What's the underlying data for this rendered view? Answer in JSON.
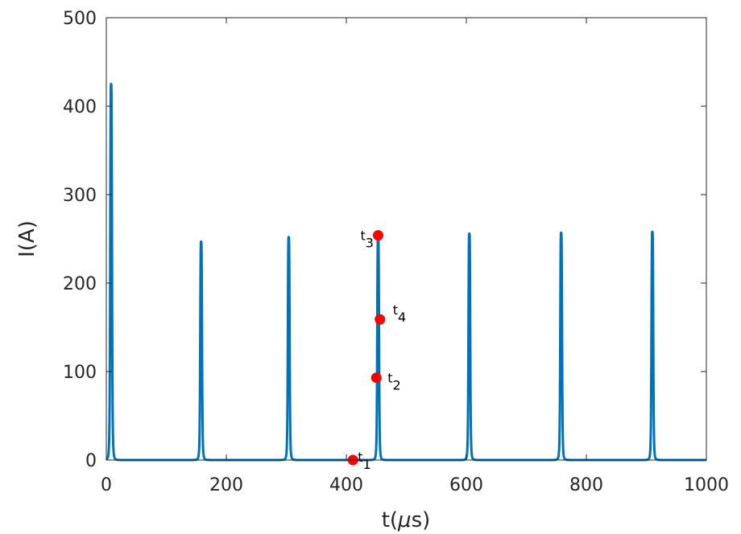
{
  "chart_data": {
    "type": "line",
    "title": "",
    "xlabel_main": "t(",
    "xlabel_greek": "μ",
    "xlabel_tail": "s)",
    "ylabel": "I(A)",
    "xlim": [
      0,
      1000
    ],
    "ylim": [
      0,
      500
    ],
    "x_ticks": [
      0,
      200,
      400,
      600,
      800,
      1000
    ],
    "y_ticks": [
      0,
      100,
      200,
      300,
      400,
      500
    ],
    "x_tick_labels": [
      "0",
      "200",
      "400",
      "600",
      "800",
      "1000"
    ],
    "y_tick_labels": [
      "0",
      "100",
      "200",
      "300",
      "400",
      "500"
    ],
    "grid": false,
    "series": [
      {
        "color": "#0072BD",
        "pulses": [
          {
            "t": 8,
            "peak": 425
          },
          {
            "t": 158,
            "peak": 247
          },
          {
            "t": 304,
            "peak": 252
          },
          {
            "t": 453,
            "peak": 254
          },
          {
            "t": 605,
            "peak": 256
          },
          {
            "t": 758,
            "peak": 257
          },
          {
            "t": 910,
            "peak": 258
          }
        ],
        "baseline": 0
      }
    ],
    "markers": {
      "color": "#FF0000",
      "points": [
        {
          "label": "t",
          "sub": "1",
          "x": 411,
          "y": 0
        },
        {
          "label": "t",
          "sub": "2",
          "x": 450,
          "y": 93
        },
        {
          "label": "t",
          "sub": "3",
          "x": 453,
          "y": 254
        },
        {
          "label": "t",
          "sub": "4",
          "x": 456,
          "y": 159
        }
      ]
    }
  }
}
